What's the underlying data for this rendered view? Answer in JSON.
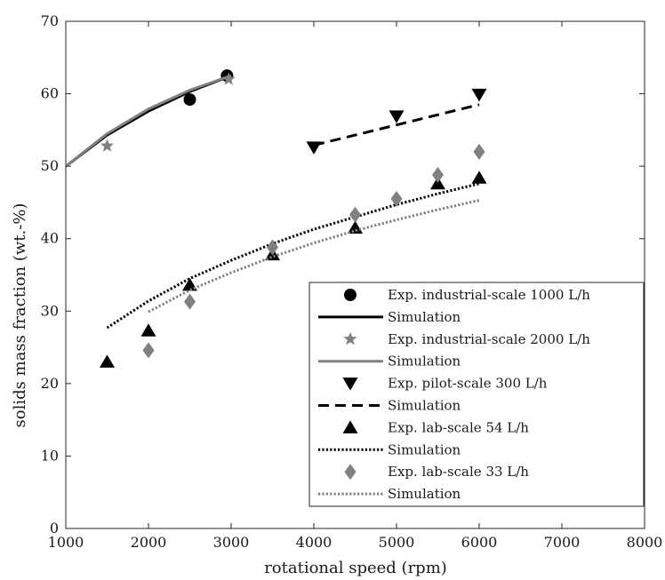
{
  "chart_data": {
    "type": "scatter",
    "xlabel": "rotational speed (rpm)",
    "ylabel": "solids mass fraction (wt.-%)",
    "xlim": [
      1000,
      8000
    ],
    "ylim": [
      0,
      70
    ],
    "xticks": [
      1000,
      2000,
      3000,
      4000,
      5000,
      6000,
      7000,
      8000
    ],
    "yticks": [
      0,
      10,
      20,
      30,
      40,
      50,
      60,
      70
    ],
    "xtick_labels": [
      "1000",
      "2000",
      "3000",
      "4000",
      "5000",
      "6000",
      "7000",
      "8000"
    ],
    "ytick_labels": [
      "0",
      "10",
      "20",
      "30",
      "40",
      "50",
      "60",
      "70"
    ],
    "grid": false,
    "legend_position": "lower-right",
    "legend": [
      "Exp. industrial-scale 1000 L/h",
      "Simulation",
      "Exp. industrial-scale 2000 L/h",
      "Simulation",
      "Exp. pilot-scale 300  L/h",
      "Simulation",
      "Exp. lab-scale 54  L/h",
      "Simulation",
      "Exp. lab-scale 33  L/h",
      "Simulation"
    ],
    "series": [
      {
        "name": "Exp. industrial-scale 1000 L/h",
        "kind": "markers",
        "marker": "circle",
        "color": "#000000",
        "x": [
          2500,
          2950
        ],
        "y": [
          59.2,
          62.5
        ]
      },
      {
        "name": "Simulation",
        "kind": "line",
        "dash": "solid",
        "color": "#000000",
        "x": [
          1000,
          1500,
          2000,
          2500,
          3000
        ],
        "y": [
          50.0,
          54.3,
          57.6,
          60.3,
          62.5
        ]
      },
      {
        "name": "Exp. industrial-scale 2000 L/h",
        "kind": "markers",
        "marker": "star",
        "color": "#808080",
        "x": [
          1500,
          2970
        ],
        "y": [
          52.8,
          62.0
        ]
      },
      {
        "name": "Simulation",
        "kind": "line",
        "dash": "solid",
        "color": "#808080",
        "x": [
          1000,
          1500,
          2000,
          2500,
          3000
        ],
        "y": [
          50.0,
          54.5,
          57.9,
          60.5,
          62.5
        ]
      },
      {
        "name": "Exp. pilot-scale 300  L/h",
        "kind": "markers",
        "marker": "triangle-down",
        "color": "#000000",
        "x": [
          4000,
          5000,
          6000
        ],
        "y": [
          52.6,
          56.9,
          59.9
        ]
      },
      {
        "name": "Simulation",
        "kind": "line",
        "dash": "dashed",
        "color": "#000000",
        "x": [
          4000,
          5000,
          6000
        ],
        "y": [
          52.9,
          55.7,
          58.5
        ]
      },
      {
        "name": "Exp. lab-scale 54  L/h",
        "kind": "markers",
        "marker": "triangle-up",
        "color": "#000000",
        "x": [
          1500,
          2000,
          2500,
          3500,
          4500,
          5500,
          6000
        ],
        "y": [
          23.0,
          27.3,
          33.6,
          37.8,
          41.5,
          47.6,
          48.4
        ]
      },
      {
        "name": "Simulation",
        "kind": "line",
        "dash": "dotted",
        "color": "#000000",
        "x": [
          1500,
          2000,
          2500,
          3000,
          3500,
          4000,
          4500,
          5000,
          5500,
          6000
        ],
        "y": [
          27.7,
          31.4,
          34.5,
          37.0,
          39.3,
          41.3,
          43.0,
          44.7,
          46.2,
          47.6
        ]
      },
      {
        "name": "Exp. lab-scale 33  L/h",
        "kind": "markers",
        "marker": "diamond",
        "color": "#808080",
        "x": [
          2000,
          2500,
          3500,
          4500,
          5000,
          5500,
          6000
        ],
        "y": [
          24.6,
          31.3,
          38.8,
          43.3,
          45.5,
          48.8,
          52.0
        ]
      },
      {
        "name": "Simulation",
        "kind": "line",
        "dash": "dotted",
        "color": "#808080",
        "x": [
          2000,
          2500,
          3000,
          3500,
          4000,
          4500,
          5000,
          5500,
          6000
        ],
        "y": [
          29.9,
          32.9,
          35.3,
          37.5,
          39.4,
          41.1,
          42.6,
          44.0,
          45.3
        ]
      }
    ]
  }
}
